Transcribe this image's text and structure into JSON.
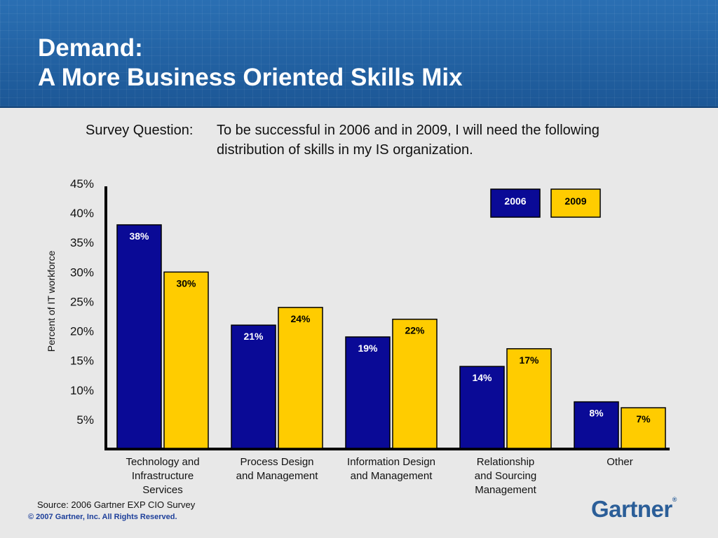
{
  "header": {
    "title_line1": "Demand:",
    "title_line2": "A More Business Oriented Skills Mix"
  },
  "survey": {
    "label": "Survey Question:",
    "text": "To be successful in 2006 and in 2009, I will need the following distribution of skills in my IS organization."
  },
  "footer": {
    "source": "Source: 2006 Gartner EXP CIO Survey",
    "copyright": "© 2007 Gartner, Inc. All Rights Reserved.",
    "logo": "Gartner"
  },
  "chart_data": {
    "type": "bar",
    "title": "",
    "xlabel": "",
    "ylabel": "Percent of IT workforce",
    "ylim": [
      0,
      45
    ],
    "yticks": [
      "5%",
      "10%",
      "15%",
      "20%",
      "25%",
      "30%",
      "35%",
      "40%",
      "45%"
    ],
    "ytick_values": [
      5,
      10,
      15,
      20,
      25,
      30,
      35,
      40,
      45
    ],
    "categories": [
      [
        "Technology and",
        "Infrastructure",
        "Services"
      ],
      [
        "Process Design",
        "and Management"
      ],
      [
        "Information Design",
        "and Management"
      ],
      [
        "Relationship",
        "and Sourcing",
        "Management"
      ],
      [
        "Other"
      ]
    ],
    "series": [
      {
        "name": "2006",
        "color": "#0a0a96",
        "label_color": "#ffffff",
        "values": [
          38,
          21,
          19,
          14,
          8
        ],
        "labels": [
          "38%",
          "21%",
          "19%",
          "14%",
          "8%"
        ]
      },
      {
        "name": "2009",
        "color": "#ffcc00",
        "label_color": "#000000",
        "values": [
          30,
          24,
          22,
          17,
          7
        ],
        "labels": [
          "30%",
          "24%",
          "22%",
          "17%",
          "7%"
        ]
      }
    ],
    "legend_position": "top-right",
    "grid": false
  }
}
